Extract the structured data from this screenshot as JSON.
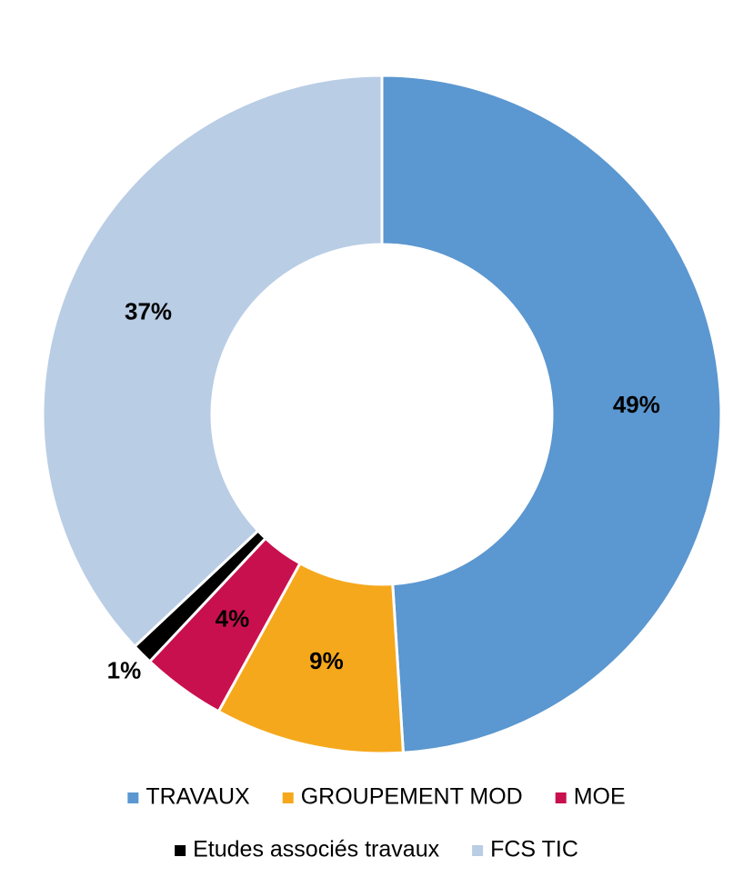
{
  "chart_data": {
    "type": "donut",
    "categories": [
      "TRAVAUX",
      "GROUPEMENT MOD",
      "MOE",
      "Etudes associés travaux",
      "FCS TIC"
    ],
    "values": [
      49,
      9,
      4,
      1,
      37
    ],
    "value_labels": [
      "49%",
      "9%",
      "4%",
      "1%",
      "37%"
    ],
    "colors": [
      "#5b97d0",
      "#f5a81c",
      "#c8104e",
      "#000000",
      "#b9cde5"
    ]
  }
}
